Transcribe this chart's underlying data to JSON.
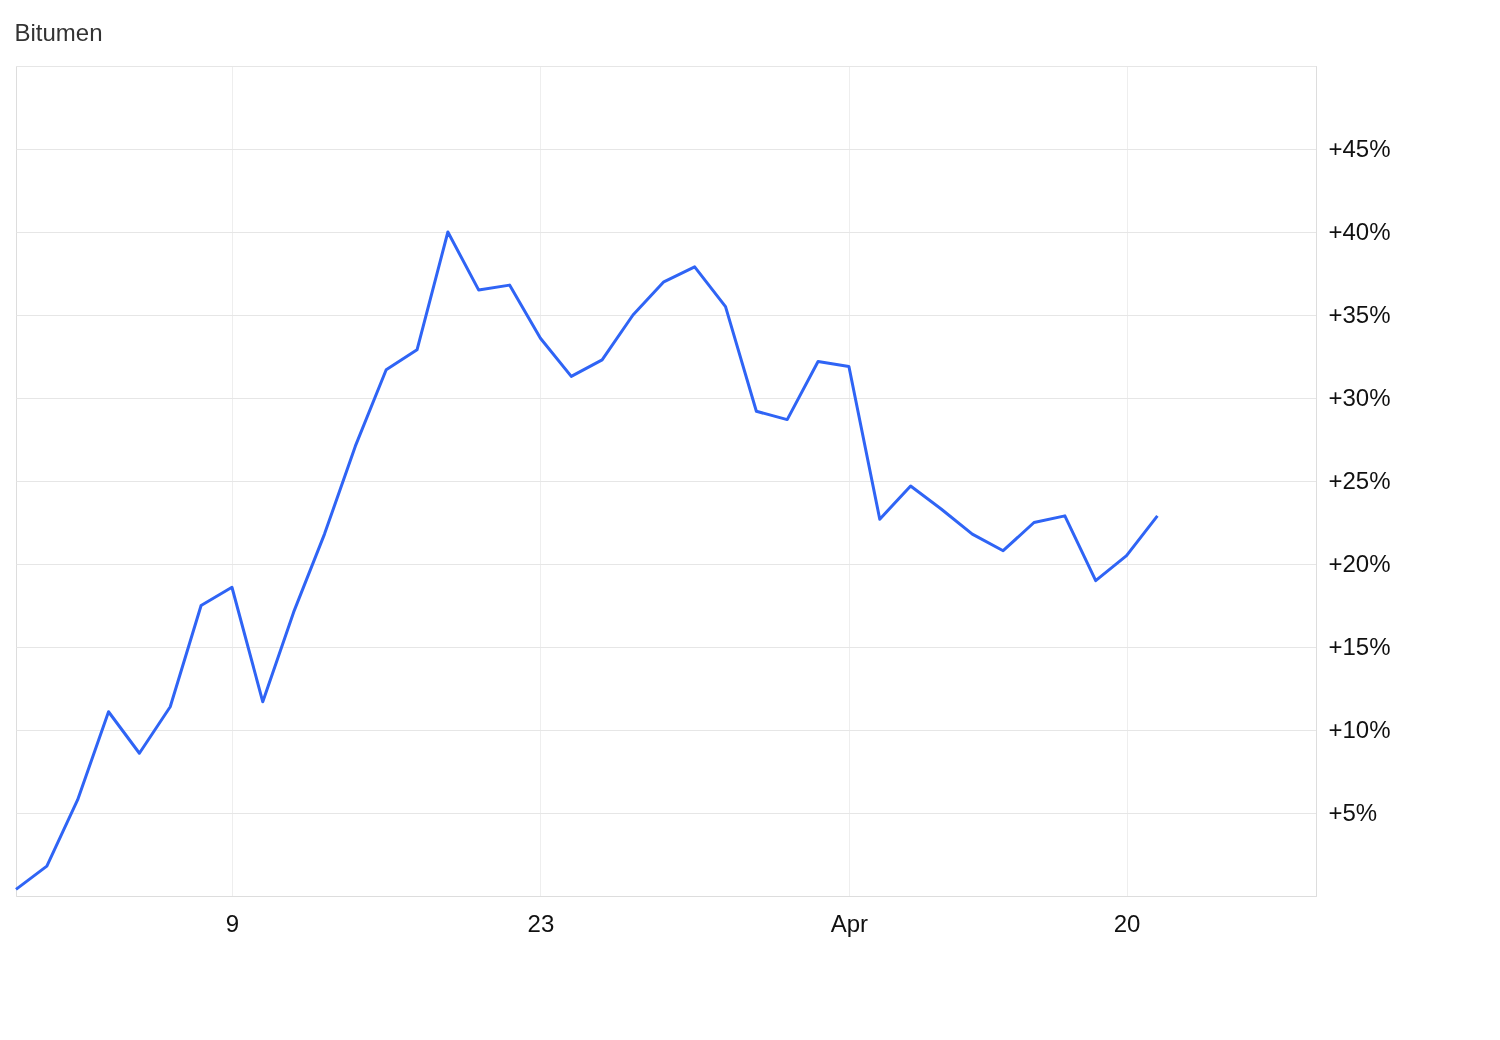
{
  "chart_data": {
    "type": "line",
    "title": "Bitumen",
    "categories": [
      null,
      null,
      null,
      null,
      null,
      null,
      null,
      "9",
      null,
      null,
      null,
      null,
      null,
      null,
      null,
      null,
      null,
      "23",
      null,
      null,
      null,
      null,
      null,
      null,
      null,
      null,
      null,
      "Apr",
      null,
      null,
      null,
      null,
      null,
      null,
      null,
      null,
      "20",
      null
    ],
    "series": [
      {
        "color": "#2f64f5",
        "values": [
          0.4,
          1.8,
          5.8,
          11.1,
          8.6,
          11.4,
          17.5,
          18.6,
          11.7,
          17.1,
          21.8,
          27.1,
          31.7,
          32.9,
          40.0,
          36.5,
          36.8,
          33.6,
          31.3,
          32.3,
          35.0,
          37.0,
          37.9,
          35.5,
          29.2,
          28.7,
          32.2,
          31.9,
          22.7,
          24.7,
          23.3,
          21.8,
          20.8,
          22.5,
          22.9,
          19.0,
          20.5,
          22.9
        ]
      }
    ],
    "ylim": [
      0,
      50
    ],
    "yticks": [
      {
        "value": 5,
        "label": "+5%"
      },
      {
        "value": 10,
        "label": "+10%"
      },
      {
        "value": 15,
        "label": "+15%"
      },
      {
        "value": 20,
        "label": "+20%"
      },
      {
        "value": 25,
        "label": "+25%"
      },
      {
        "value": 30,
        "label": "+30%"
      },
      {
        "value": 35,
        "label": "+35%"
      },
      {
        "value": 40,
        "label": "+40%"
      },
      {
        "value": 45,
        "label": "+45%"
      },
      {
        "value": 50,
        "label": null
      }
    ],
    "grid": true,
    "legend": false,
    "marker": "none",
    "line_style": "solid"
  }
}
